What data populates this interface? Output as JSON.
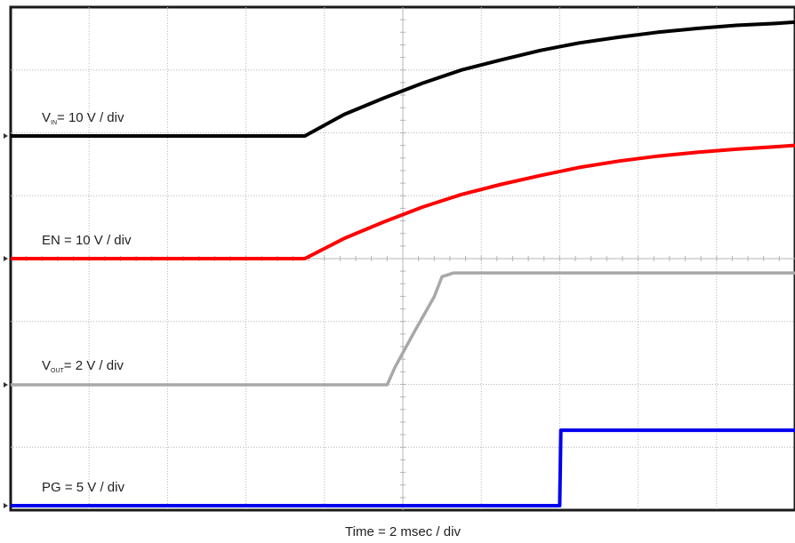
{
  "chart_data": {
    "type": "line",
    "title": "",
    "xlabel": "Time = 2 msec / div",
    "ylabel": "",
    "grid": true,
    "divisions": {
      "x": 10,
      "y": 8
    },
    "x_unit": "ms",
    "xlim": [
      0,
      20
    ],
    "series": [
      {
        "name_parts": {
          "main": "V",
          "sub": "IN",
          "rest": "= 10 V / div"
        },
        "color": "#000000",
        "volts_per_div": 10,
        "x": [
          0,
          7.5,
          8.5,
          9.5,
          10.5,
          11.5,
          12.5,
          13.5,
          14.5,
          15.5,
          16.5,
          17.5,
          18.5,
          19.5,
          20
        ],
        "y": [
          0,
          0,
          0.34,
          0.6,
          0.84,
          1.05,
          1.21,
          1.36,
          1.48,
          1.57,
          1.65,
          1.71,
          1.76,
          1.79,
          1.81
        ]
      },
      {
        "name_parts": {
          "main": "EN",
          "sub": "",
          "rest": " = 10 V / div"
        },
        "color": "#ff0000",
        "volts_per_div": 10,
        "x": [
          0,
          7.5,
          8.5,
          9.5,
          10.5,
          11.5,
          12.5,
          13.5,
          14.5,
          15.5,
          16.5,
          17.5,
          18.5,
          19.5,
          20
        ],
        "y": [
          0,
          0,
          0.32,
          0.58,
          0.82,
          1.02,
          1.18,
          1.32,
          1.45,
          1.55,
          1.63,
          1.69,
          1.74,
          1.78,
          1.8
        ]
      },
      {
        "name_parts": {
          "main": "V",
          "sub": "OUT",
          "rest": "= 2 V / div"
        },
        "color": "#a8a8a8",
        "volts_per_div": 2,
        "x": [
          0,
          9.6,
          9.8,
          10.3,
          10.8,
          11.0,
          11.3,
          20
        ],
        "y": [
          0,
          0,
          0.28,
          0.85,
          1.4,
          1.72,
          1.78,
          1.78
        ]
      },
      {
        "name_parts": {
          "main": "PG",
          "sub": "",
          "rest": " = 5 V / div"
        },
        "color": "#0000ee",
        "volts_per_div": 5,
        "x": [
          0,
          14.0,
          14.03,
          20
        ],
        "y": [
          0,
          0,
          1.2,
          1.2
        ]
      }
    ]
  }
}
